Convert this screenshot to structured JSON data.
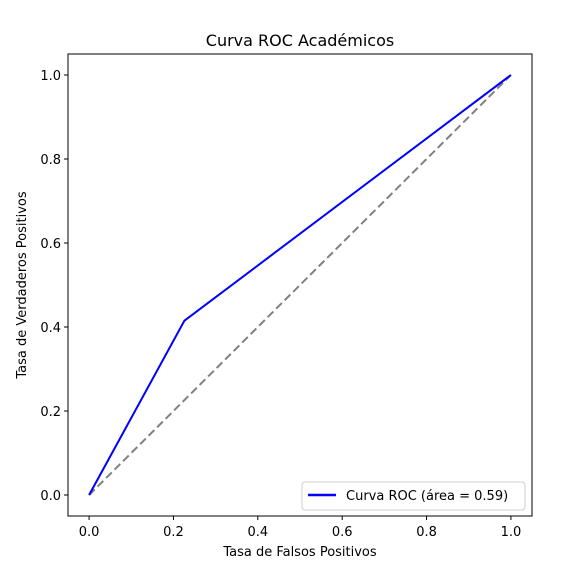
{
  "chart_data": {
    "type": "line",
    "title": "Curva ROC Académicos",
    "xlabel": "Tasa de Falsos Positivos",
    "ylabel": "Tasa de Verdaderos Positivos",
    "xlim": [
      -0.05,
      1.05
    ],
    "ylim": [
      -0.05,
      1.05
    ],
    "xticks": [
      "0.0",
      "0.2",
      "0.4",
      "0.6",
      "0.8",
      "1.0"
    ],
    "yticks": [
      "0.0",
      "0.2",
      "0.4",
      "0.6",
      "0.8",
      "1.0"
    ],
    "grid": false,
    "legend_position": "lower-right",
    "series": [
      {
        "name": "Curva ROC (área = 0.59)",
        "color": "#0000ff",
        "style": "solid",
        "x": [
          0.0,
          0.226,
          1.0
        ],
        "y": [
          0.0,
          0.415,
          1.0
        ]
      },
      {
        "color": "#808080",
        "style": "dashed",
        "x": [
          0.0,
          1.0
        ],
        "y": [
          0.0,
          1.0
        ]
      }
    ]
  }
}
